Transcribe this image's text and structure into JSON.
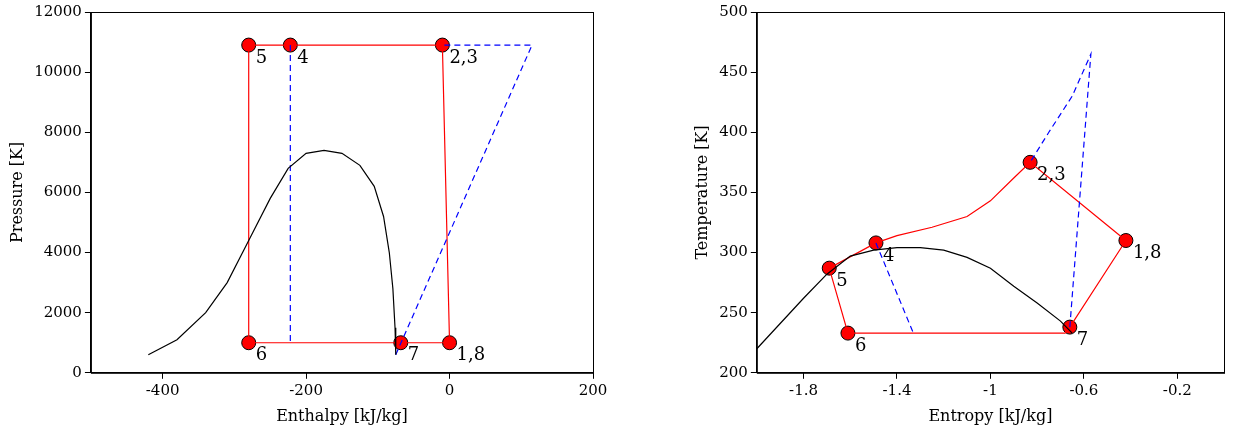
{
  "chart_data": [
    {
      "type": "line",
      "x_label": "Enthalpy [kJ/kg]",
      "y_label": "Pressure [K]",
      "xlim": [
        -500,
        200
      ],
      "xticks": [
        -400,
        -200,
        0,
        200
      ],
      "ylim": [
        0,
        12000
      ],
      "yticks": [
        0,
        2000,
        4000,
        6000,
        8000,
        10000,
        12000
      ],
      "grid": false,
      "series": [
        {
          "type": "line",
          "color": "#000000",
          "line_style": "solid",
          "marker": "none",
          "x": [
            -420,
            -380,
            -340,
            -310,
            -280,
            -250,
            -225,
            -200,
            -175,
            -150,
            -125,
            -105,
            -92,
            -84,
            -79,
            -76,
            -75
          ],
          "values": [
            600,
            1100,
            2000,
            3000,
            4400,
            5800,
            6800,
            7300,
            7400,
            7300,
            6900,
            6200,
            5200,
            4000,
            2800,
            1500,
            600
          ]
        },
        {
          "type": "line",
          "color": "#0000ff",
          "line_style": "dashed",
          "marker": "none",
          "x": [
            -222,
            -222
          ],
          "values": [
            10900,
            1000
          ]
        },
        {
          "type": "line",
          "color": "#0000ff",
          "line_style": "dashed",
          "marker": "none",
          "x": [
            -75,
            115,
            -10
          ],
          "values": [
            600,
            10900,
            10900
          ]
        },
        {
          "type": "line",
          "color": "#ff0000",
          "line_style": "solid",
          "marker": "none",
          "x": [
            0,
            -10,
            -222,
            -280,
            -280,
            -68,
            0
          ],
          "values": [
            1000,
            10900,
            10900,
            10900,
            1000,
            1000,
            1000
          ]
        },
        {
          "type": "scatter",
          "color": "#ff0000",
          "marker": "circle",
          "x": [
            -280,
            -222,
            -10,
            -280,
            -68,
            0
          ],
          "values": [
            10900,
            10900,
            10900,
            1000,
            1000,
            1000
          ]
        }
      ],
      "annotations": [
        {
          "text": "5",
          "x": -280,
          "y": 10900
        },
        {
          "text": "4",
          "x": -222,
          "y": 10900
        },
        {
          "text": "2,3",
          "x": -10,
          "y": 10900
        },
        {
          "text": "6",
          "x": -280,
          "y": 1000
        },
        {
          "text": "7",
          "x": -68,
          "y": 1000
        },
        {
          "text": "1,8",
          "x": 0,
          "y": 1000
        }
      ]
    },
    {
      "type": "line",
      "x_label": "Entropy [kJ/kg]",
      "y_label": "Temperature [K]",
      "xlim": [
        -2.0,
        0.0
      ],
      "xticks": [
        -1.8,
        -1.4,
        -1.0,
        -0.6,
        -0.2
      ],
      "ylim": [
        200,
        500
      ],
      "yticks": [
        200,
        250,
        300,
        350,
        400,
        450,
        500
      ],
      "grid": false,
      "series": [
        {
          "type": "line",
          "color": "#000000",
          "line_style": "solid",
          "marker": "none",
          "x": [
            -2.0,
            -1.8,
            -1.7,
            -1.6,
            -1.5,
            -1.4,
            -1.3,
            -1.2,
            -1.1,
            -1.0,
            -0.9,
            -0.8,
            -0.7,
            -0.65
          ],
          "values": [
            220,
            262,
            282,
            297,
            302,
            304,
            304,
            302,
            296,
            287,
            272,
            258,
            243,
            233
          ]
        },
        {
          "type": "line",
          "color": "#0000ff",
          "line_style": "dashed",
          "marker": "none",
          "x": [
            -1.49,
            -1.33
          ],
          "values": [
            308,
            233
          ]
        },
        {
          "type": "line",
          "color": "#0000ff",
          "line_style": "dashed",
          "marker": "none",
          "x": [
            -0.66,
            -0.57,
            -0.65,
            -0.75,
            -0.83
          ],
          "values": [
            238,
            465,
            430,
            400,
            375
          ]
        },
        {
          "type": "line",
          "color": "#ff0000",
          "line_style": "solid",
          "marker": "none",
          "x": [
            -0.42,
            -0.83,
            -0.9,
            -1.0,
            -1.1,
            -1.25,
            -1.4,
            -1.49,
            -1.69,
            -1.61,
            -0.68,
            -0.66,
            -0.42
          ],
          "values": [
            310,
            375,
            362,
            343,
            330,
            321,
            314,
            308,
            287,
            233,
            233,
            238,
            310
          ]
        },
        {
          "type": "scatter",
          "color": "#ff0000",
          "marker": "circle",
          "x": [
            -1.69,
            -1.49,
            -0.83,
            -0.42,
            -0.66,
            -1.61
          ],
          "values": [
            287,
            308,
            375,
            310,
            238,
            233
          ]
        }
      ],
      "annotations": [
        {
          "text": "5",
          "x": -1.69,
          "y": 287
        },
        {
          "text": "4",
          "x": -1.49,
          "y": 308
        },
        {
          "text": "2,3",
          "x": -0.83,
          "y": 375
        },
        {
          "text": "1,8",
          "x": -0.42,
          "y": 310
        },
        {
          "text": "7",
          "x": -0.66,
          "y": 238
        },
        {
          "text": "6",
          "x": -1.61,
          "y": 233
        }
      ]
    }
  ]
}
